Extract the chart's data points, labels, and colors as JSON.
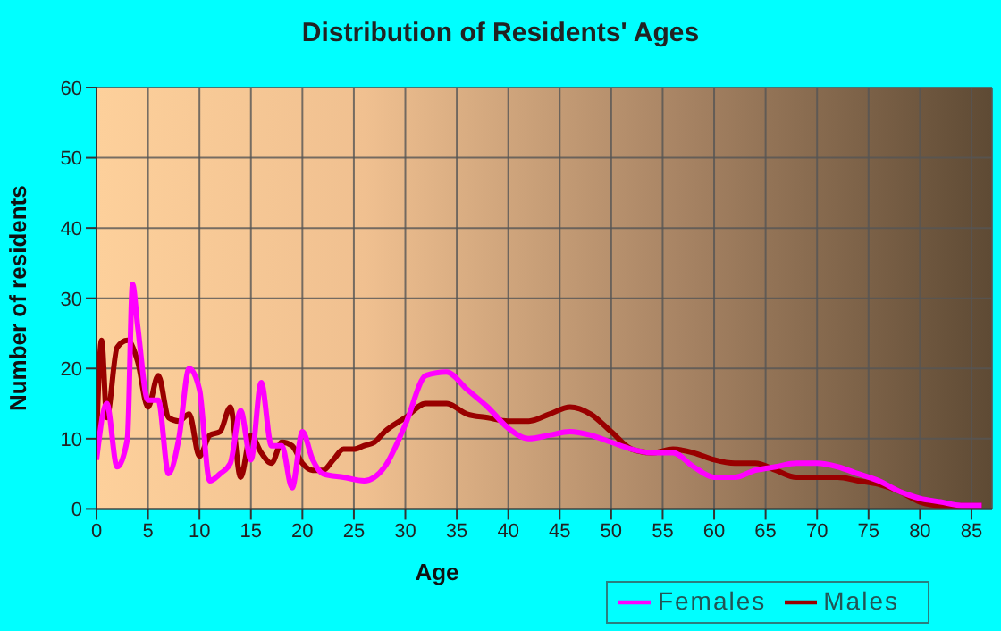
{
  "chart_data": {
    "type": "line",
    "title": "Distribution of Residents' Ages",
    "xlabel": "Age",
    "ylabel": "Number of residents",
    "xlim": [
      0,
      87
    ],
    "xticks": [
      0,
      5,
      10,
      15,
      20,
      25,
      30,
      35,
      40,
      45,
      50,
      55,
      60,
      65,
      70,
      75,
      80,
      85
    ],
    "ylim": [
      0,
      60
    ],
    "yticks": [
      0,
      10,
      20,
      30,
      40,
      50,
      60
    ],
    "grid": true,
    "legend": "bottom right",
    "marker": "none",
    "line_style": "solid",
    "series": [
      {
        "name": "Males",
        "color": "#990000",
        "x": [
          0,
          0.5,
          1,
          2,
          3,
          4,
          5,
          6,
          7,
          8,
          9,
          10,
          11,
          12,
          13,
          14,
          15,
          16,
          17,
          18,
          19,
          20,
          21,
          22,
          23,
          24,
          25,
          26,
          27,
          28,
          30,
          32,
          34,
          36,
          38,
          40,
          42,
          44,
          46,
          48,
          50,
          52,
          54,
          56,
          58,
          60,
          62,
          64,
          66,
          68,
          70,
          72,
          74,
          76,
          78,
          80,
          82,
          84,
          86
        ],
        "values": [
          10,
          24,
          13,
          23,
          24,
          21,
          14.5,
          19,
          13,
          12.5,
          13.5,
          7.5,
          10.5,
          11,
          14.5,
          4.5,
          10.5,
          8,
          6.5,
          9.5,
          9,
          6.5,
          5.5,
          5.5,
          7,
          8.5,
          8.5,
          9,
          9.5,
          11,
          13,
          15,
          15,
          13.5,
          13,
          12.5,
          12.5,
          13.5,
          14.5,
          13.5,
          11,
          8.5,
          8,
          8.5,
          8,
          7,
          6.5,
          6.5,
          5.5,
          4.5,
          4.5,
          4.5,
          4,
          3.5,
          2.5,
          1,
          0.5,
          0.5,
          0.5
        ]
      },
      {
        "name": "Females",
        "color": "#ff00ff",
        "x": [
          0,
          1,
          2,
          3,
          3.5,
          4,
          5,
          6,
          7,
          8,
          9,
          10,
          11,
          12,
          13,
          14,
          15,
          16,
          17,
          18,
          19,
          20,
          21,
          22,
          24,
          26,
          28,
          30,
          32,
          34,
          36,
          38,
          40,
          42,
          44,
          46,
          48,
          50,
          52,
          54,
          56,
          58,
          60,
          62,
          64,
          66,
          68,
          70,
          72,
          74,
          76,
          78,
          80,
          82,
          84,
          86
        ],
        "values": [
          7,
          15,
          6,
          10,
          32,
          26,
          15.5,
          15.5,
          5,
          10,
          20,
          17,
          4,
          5,
          6.5,
          14,
          7,
          18,
          9,
          9,
          3,
          11,
          7,
          5,
          4.5,
          4,
          6,
          12,
          19,
          19.5,
          17,
          14.5,
          11.5,
          10,
          10.5,
          11,
          10.5,
          9.5,
          8.5,
          8,
          8,
          6,
          4.5,
          4.5,
          5.5,
          6,
          6.5,
          6.5,
          6,
          5,
          4,
          2.5,
          1.5,
          1,
          0.5,
          0.5
        ]
      }
    ]
  }
}
